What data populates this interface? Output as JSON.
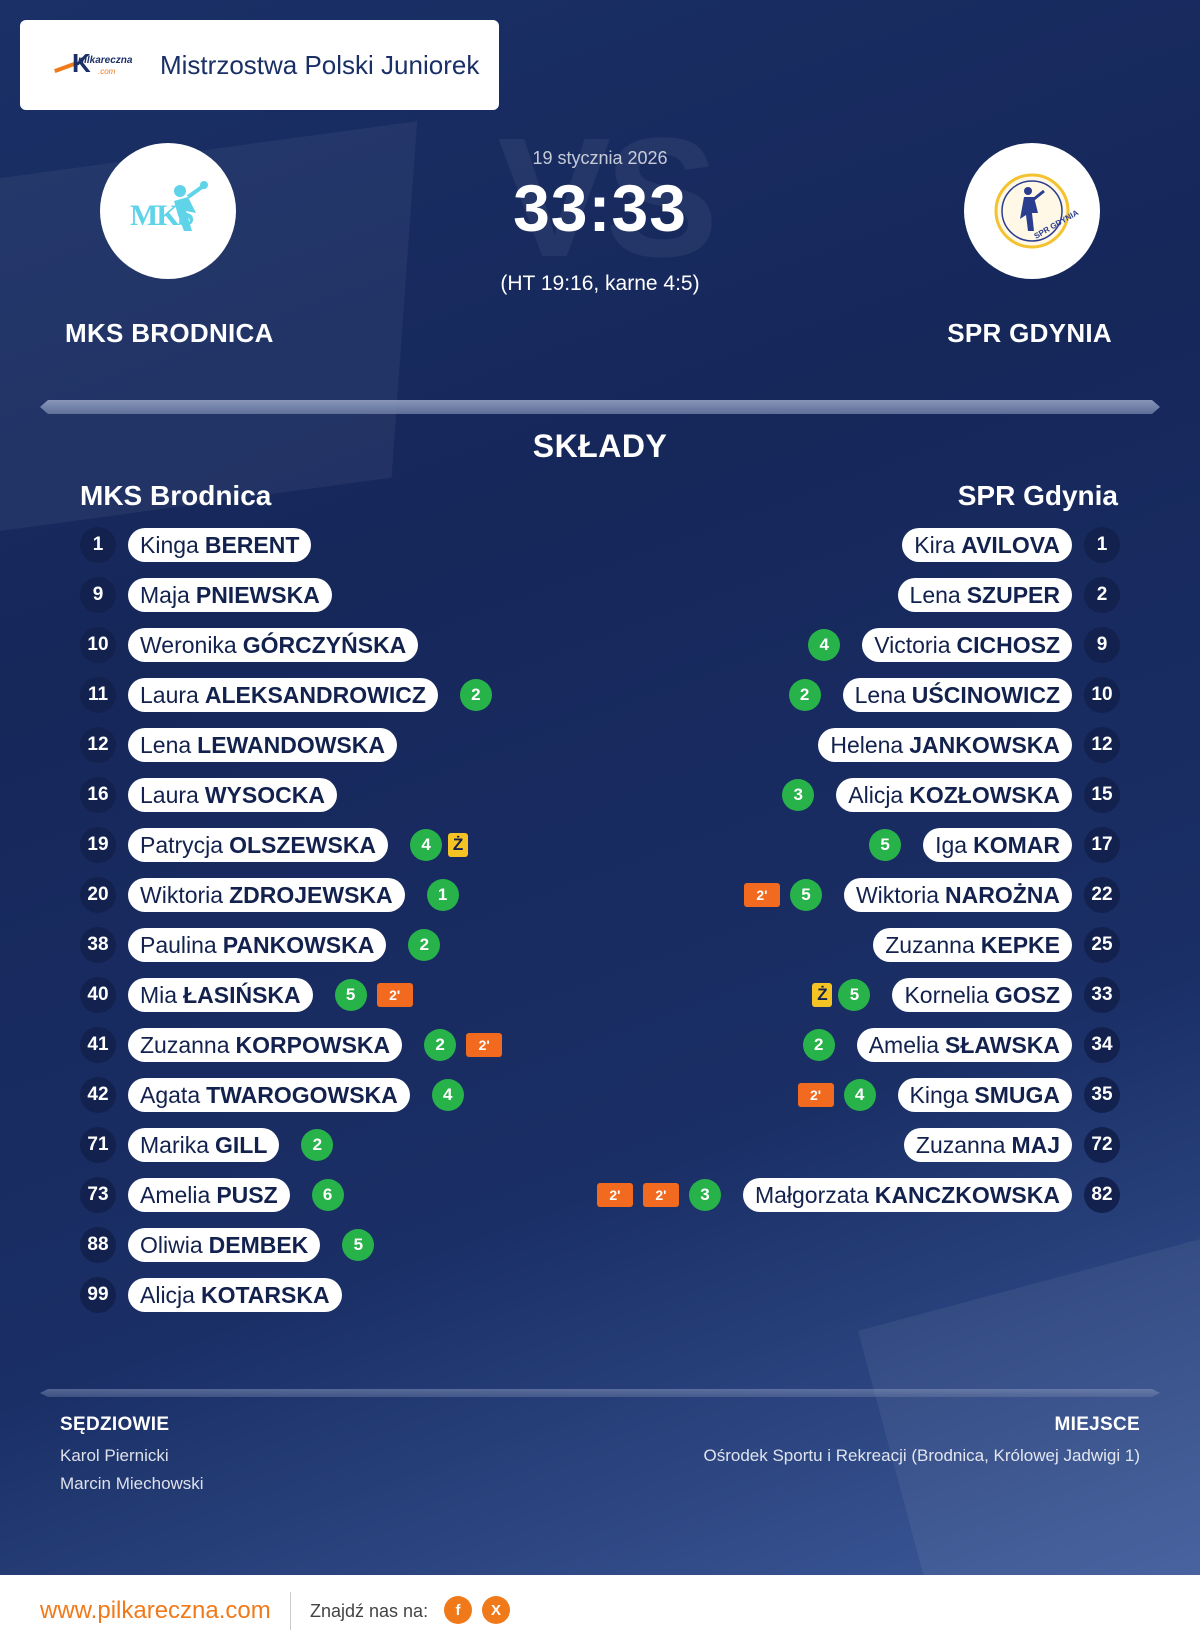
{
  "competition": {
    "logo_text": "pilkareczna",
    "logo_sub": ".com",
    "title": "Mistrzostwa Polski Juniorek"
  },
  "match": {
    "date": "19 stycznia 2026",
    "score": "33:33",
    "info": "(HT 19:16, karne 4:5)",
    "vs": "VS"
  },
  "home": {
    "name_upper": "MKS BRODNICA",
    "name": "MKS Brodnica",
    "logo_text": "MKS",
    "logo_color": "#5fd3e8",
    "players": [
      {
        "num": "1",
        "first": "Kinga",
        "last": "BERENT"
      },
      {
        "num": "9",
        "first": "Maja",
        "last": "PNIEWSKA"
      },
      {
        "num": "10",
        "first": "Weronika",
        "last": "GÓRCZYŃSKA"
      },
      {
        "num": "11",
        "first": "Laura",
        "last": "ALEKSANDROWICZ",
        "goals": "2"
      },
      {
        "num": "12",
        "first": "Lena",
        "last": "LEWANDOWSKA"
      },
      {
        "num": "16",
        "first": "Laura",
        "last": "WYSOCKA"
      },
      {
        "num": "19",
        "first": "Patrycja",
        "last": "OLSZEWSKA",
        "goals": "4",
        "yellow": "Ż"
      },
      {
        "num": "20",
        "first": "Wiktoria",
        "last": "ZDROJEWSKA",
        "goals": "1"
      },
      {
        "num": "38",
        "first": "Paulina",
        "last": "PANKOWSKA",
        "goals": "2"
      },
      {
        "num": "40",
        "first": "Mia",
        "last": "ŁASIŃSKA",
        "goals": "5",
        "susp": [
          "2'"
        ]
      },
      {
        "num": "41",
        "first": "Zuzanna",
        "last": "KORPOWSKA",
        "goals": "2",
        "susp": [
          "2'"
        ]
      },
      {
        "num": "42",
        "first": "Agata",
        "last": "TWAROGOWSKA",
        "goals": "4"
      },
      {
        "num": "71",
        "first": "Marika",
        "last": "GILL",
        "goals": "2"
      },
      {
        "num": "73",
        "first": "Amelia",
        "last": "PUSZ",
        "goals": "6"
      },
      {
        "num": "88",
        "first": "Oliwia",
        "last": "DEMBEK",
        "goals": "5"
      },
      {
        "num": "99",
        "first": "Alicja",
        "last": "KOTARSKA"
      }
    ]
  },
  "away": {
    "name_upper": "SPR GDYNIA",
    "name": "SPR Gdynia",
    "logo_text": "SPR GDYNIA",
    "logo_color": "#2a3d8f",
    "players": [
      {
        "num": "1",
        "first": "Kira",
        "last": "AVILOVA"
      },
      {
        "num": "2",
        "first": "Lena",
        "last": "SZUPER"
      },
      {
        "num": "9",
        "first": "Victoria",
        "last": "CICHOSZ",
        "goals": "4"
      },
      {
        "num": "10",
        "first": "Lena",
        "last": "UŚCINOWICZ",
        "goals": "2"
      },
      {
        "num": "12",
        "first": "Helena",
        "last": "JANKOWSKA"
      },
      {
        "num": "15",
        "first": "Alicja",
        "last": "KOZŁOWSKA",
        "goals": "3"
      },
      {
        "num": "17",
        "first": "Iga",
        "last": "KOMAR",
        "goals": "5"
      },
      {
        "num": "22",
        "first": "Wiktoria",
        "last": "NAROŻNA",
        "goals": "5",
        "susp": [
          "2'"
        ]
      },
      {
        "num": "25",
        "first": "Zuzanna",
        "last": "KEPKE"
      },
      {
        "num": "33",
        "first": "Kornelia",
        "last": "GOSZ",
        "goals": "5",
        "yellow": "Ż"
      },
      {
        "num": "34",
        "first": "Amelia",
        "last": "SŁAWSKA",
        "goals": "2"
      },
      {
        "num": "35",
        "first": "Kinga",
        "last": "SMUGA",
        "goals": "4",
        "susp": [
          "2'"
        ]
      },
      {
        "num": "72",
        "first": "Zuzanna",
        "last": "MAJ"
      },
      {
        "num": "82",
        "first": "Małgorzata",
        "last": "KANCZKOWSKA",
        "goals": "3",
        "susp": [
          "2'",
          "2'"
        ]
      }
    ]
  },
  "section_title": "SKŁADY",
  "officials": {
    "label": "SĘDZIOWIE",
    "names": [
      "Karol Piernicki",
      "Marcin Miechowski"
    ]
  },
  "venue": {
    "label": "MIEJSCE",
    "value": "Ośrodek Sportu i Rekreacji (Brodnica, Królowej Jadwigi 1)"
  },
  "footer": {
    "url": "www.pilkareczna.com",
    "find_us": "Znajdź nas na:",
    "social": [
      {
        "name": "facebook-icon",
        "glyph": "f"
      },
      {
        "name": "x-icon",
        "glyph": "X"
      }
    ]
  },
  "colors": {
    "accent": "#f07a1a",
    "goals": "#27b24a",
    "yellow_card": "#f5c324",
    "suspension": "#f26a1f",
    "navy": "#12214d"
  }
}
